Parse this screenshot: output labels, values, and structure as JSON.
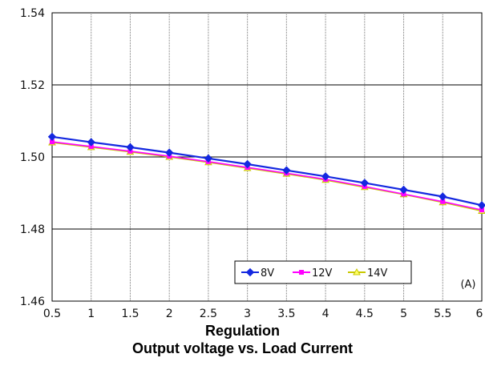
{
  "chart_data": {
    "type": "line",
    "title": "Regulation",
    "subtitle": "Output voltage vs. Load Current",
    "unit_label": "(A)",
    "x": [
      0.5,
      1,
      1.5,
      2,
      2.5,
      3,
      3.5,
      4,
      4.5,
      5,
      5.5,
      6
    ],
    "x_tick_labels": [
      "0.5",
      "1",
      "1.5",
      "2",
      "2.5",
      "3",
      "3.5",
      "4",
      "4.5",
      "5",
      "5.5",
      "6"
    ],
    "y_tick_labels": [
      "1.46",
      "1.48",
      "1.50",
      "1.52",
      "1.54"
    ],
    "y_ticks": [
      1.46,
      1.48,
      1.5,
      1.52,
      1.54
    ],
    "xlim": [
      0.5,
      6
    ],
    "ylim": [
      1.46,
      1.54
    ],
    "grid": true,
    "legend_position": "bottom-right",
    "series": [
      {
        "name": "8V",
        "color": "#1428e0",
        "marker": "diamond",
        "values": [
          1.5056,
          1.5041,
          1.5027,
          1.5012,
          1.4996,
          1.498,
          1.4963,
          1.4946,
          1.4928,
          1.4909,
          1.489,
          1.4866
        ]
      },
      {
        "name": "12V",
        "color": "#ff00ff",
        "marker": "square",
        "values": [
          1.5042,
          1.5029,
          1.5016,
          1.5002,
          1.4987,
          1.4971,
          1.4955,
          1.4938,
          1.4918,
          1.4897,
          1.4876,
          1.4853
        ]
      },
      {
        "name": "14V",
        "color": "#c8c800",
        "marker": "triangle",
        "values": [
          1.504,
          1.5027,
          1.5014,
          1.5,
          1.4985,
          1.4969,
          1.4953,
          1.4936,
          1.4916,
          1.4896,
          1.4874,
          1.485
        ]
      }
    ]
  }
}
